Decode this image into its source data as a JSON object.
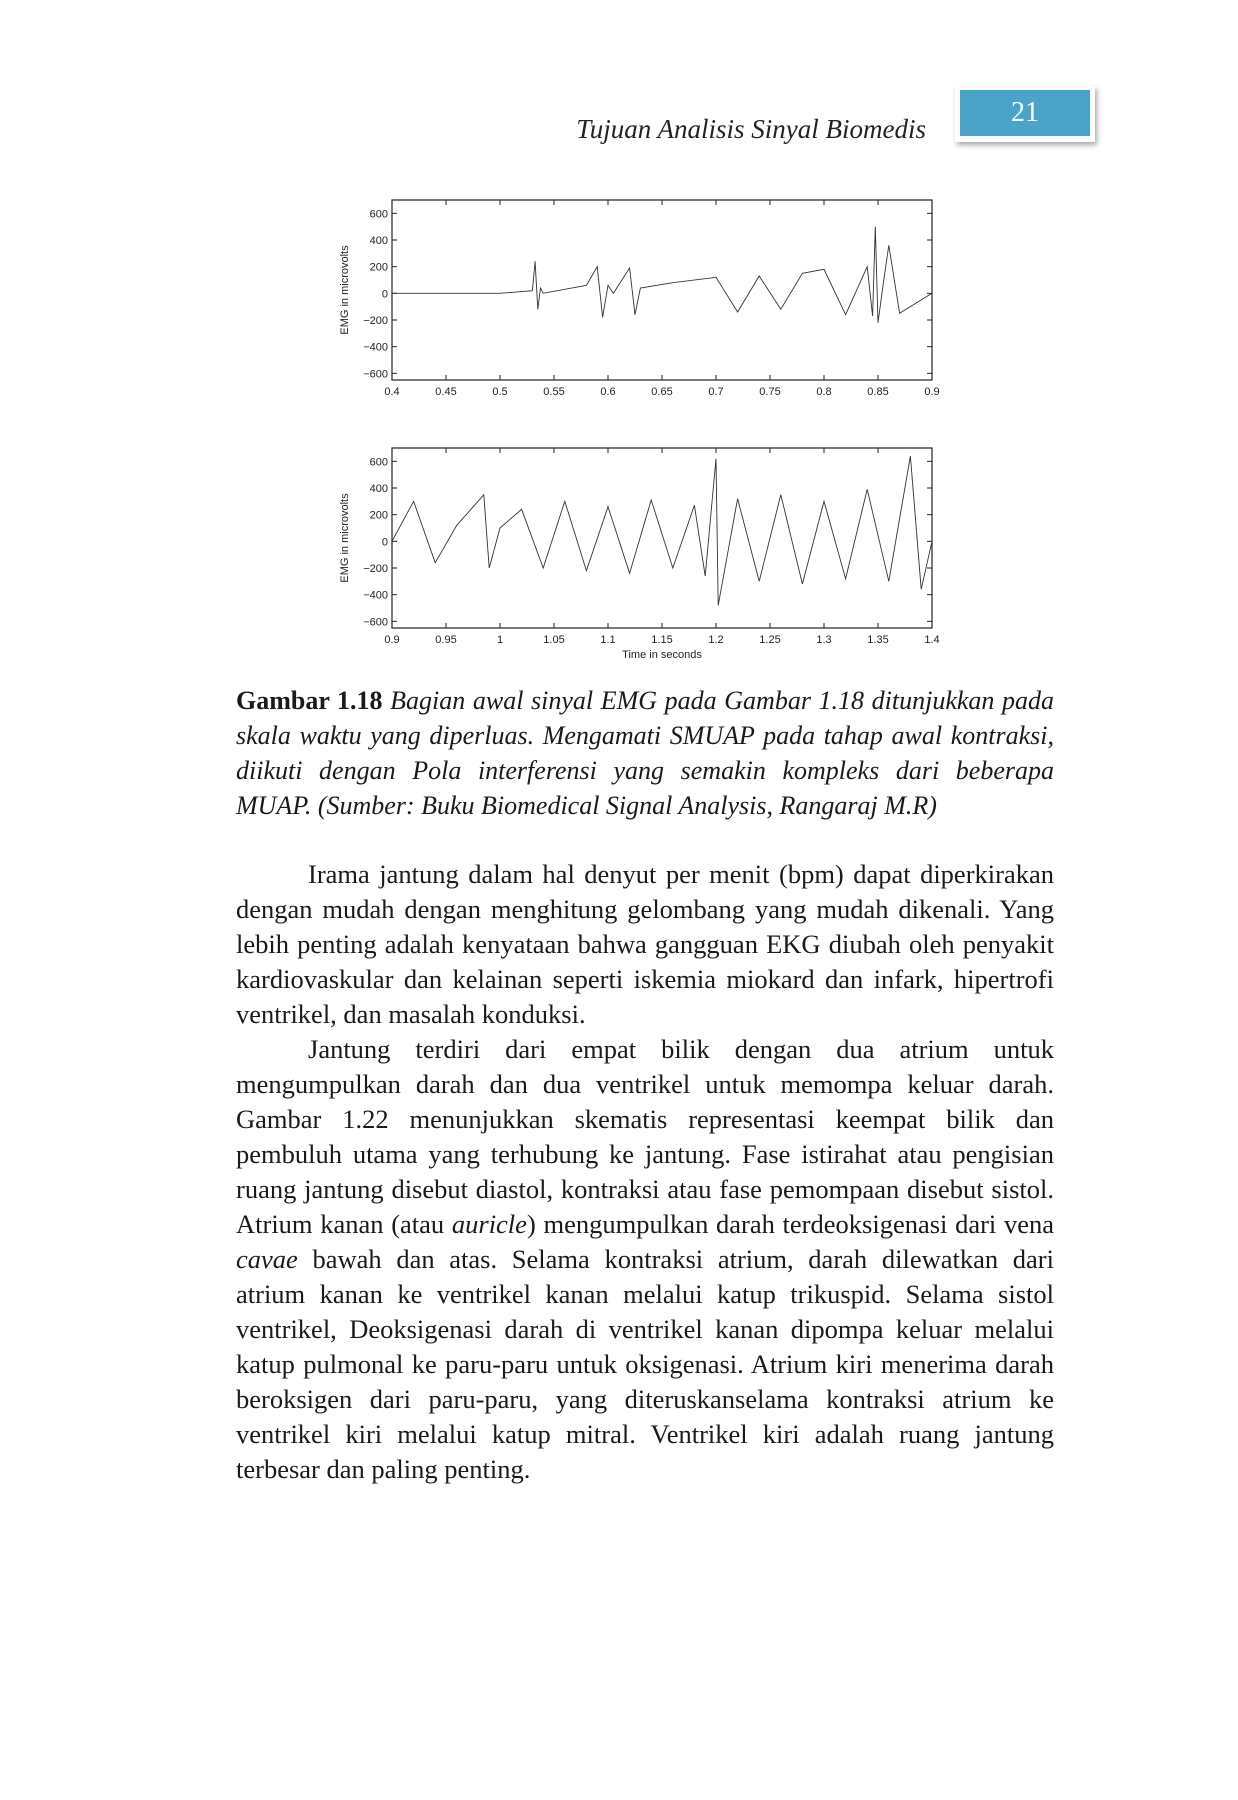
{
  "header": {
    "running_title": "Tujuan Analisis Sinyal Biomedis",
    "page_number": "21",
    "page_number_bg": "#4aa3c9"
  },
  "chart_data": [
    {
      "type": "line",
      "xlabel": "",
      "ylabel": "EMG in microvolts",
      "xlim": [
        0.4,
        0.9
      ],
      "ylim": [
        -650,
        700
      ],
      "x_ticks": [
        "0.4",
        "0.45",
        "0.5",
        "0.55",
        "0.6",
        "0.65",
        "0.7",
        "0.75",
        "0.8",
        "0.85",
        "0.9"
      ],
      "y_ticks": [
        "600",
        "400",
        "200",
        "0",
        "−200",
        "−400",
        "−600"
      ],
      "series": [
        {
          "x": [
            0.4,
            0.5,
            0.53,
            0.5325,
            0.535,
            0.5375,
            0.54,
            0.58,
            0.59,
            0.595,
            0.6,
            0.605,
            0.62,
            0.625,
            0.63,
            0.66,
            0.7,
            0.72,
            0.74,
            0.76,
            0.78,
            0.8,
            0.82,
            0.84,
            0.845,
            0.8475,
            0.85,
            0.855,
            0.86,
            0.87,
            0.9
          ],
          "y": [
            0,
            0,
            20,
            240,
            -120,
            40,
            0,
            60,
            200,
            -180,
            60,
            0,
            190,
            -160,
            40,
            80,
            120,
            -140,
            130,
            -120,
            150,
            180,
            -160,
            200,
            -170,
            500,
            -220,
            80,
            360,
            -150,
            0
          ]
        }
      ]
    },
    {
      "type": "line",
      "xlabel": "Time in seconds",
      "ylabel": "EMG in microvolts",
      "xlim": [
        0.9,
        1.4
      ],
      "ylim": [
        -650,
        700
      ],
      "x_ticks": [
        "0.9",
        "0.95",
        "1",
        "1.05",
        "1.1",
        "1.15",
        "1.2",
        "1.25",
        "1.3",
        "1.35",
        "1.4"
      ],
      "y_ticks": [
        "600",
        "400",
        "200",
        "0",
        "−200",
        "−400",
        "−600"
      ],
      "series": [
        {
          "x": [
            0.9,
            0.92,
            0.94,
            0.96,
            0.985,
            0.99,
            1.0,
            1.02,
            1.04,
            1.06,
            1.08,
            1.1,
            1.12,
            1.14,
            1.16,
            1.18,
            1.19,
            1.2,
            1.202,
            1.22,
            1.24,
            1.26,
            1.28,
            1.3,
            1.32,
            1.34,
            1.36,
            1.38,
            1.39,
            1.4
          ],
          "y": [
            0,
            300,
            -160,
            120,
            350,
            -200,
            100,
            240,
            -200,
            300,
            -220,
            260,
            -240,
            310,
            -200,
            270,
            -260,
            620,
            -480,
            320,
            -300,
            350,
            -320,
            300,
            -280,
            390,
            -300,
            640,
            -360,
            0
          ]
        }
      ]
    }
  ],
  "caption": {
    "label": "Gambar 1.18",
    "text": "Bagian awal sinyal EMG pada Gambar 1.18 ditunjukkan pada skala waktu yang diperluas. Mengamati SMUAP pada tahap awal kontraksi, diikuti dengan Pola interferensi yang semakin kompleks dari beberapa MUAP. (Sumber: Buku Biomedical Signal Analysis, Rangaraj M.R)"
  },
  "body": {
    "p1": "Irama jantung dalam hal denyut per menit (bpm) dapat diperkirakan dengan mudah dengan menghitung gelombang yang mudah dikenali. Yang lebih penting adalah kenyataan bahwa gangguan EKG diubah oleh penyakit kardiovaskular dan kelainan seperti iskemia miokard dan infark, hipertrofi ventrikel, dan masalah konduksi.",
    "p2a": "Jantung terdiri dari empat bilik dengan dua atrium untuk mengumpulkan darah dan dua ventrikel untuk memompa keluar darah. Gambar 1.22 menunjukkan skematis representasi keempat bilik dan pembuluh utama yang terhubung ke jantung. Fase istirahat atau pengisian ruang jantung disebut diastol, kontraksi atau fase pemompaan disebut sistol. Atrium kanan (atau ",
    "p2_auricle": "auricle",
    "p2b": ") mengumpulkan darah terdeoksigenasi dari vena ",
    "p2_cavae": "cavae",
    "p2c": " bawah dan atas. Selama kontraksi atrium, darah dilewatkan dari atrium kanan ke ventrikel kanan melalui katup trikuspid. Selama sistol ventrikel, Deoksigenasi darah di ventrikel kanan dipompa keluar melalui katup pulmonal ke paru-paru untuk oksigenasi. Atrium kiri menerima darah beroksigen dari paru-paru, yang diteruskanselama kontraksi atrium ke ventrikel kiri melalui katup mitral. Ventrikel kiri adalah ruang jantung terbesar dan paling penting."
  }
}
